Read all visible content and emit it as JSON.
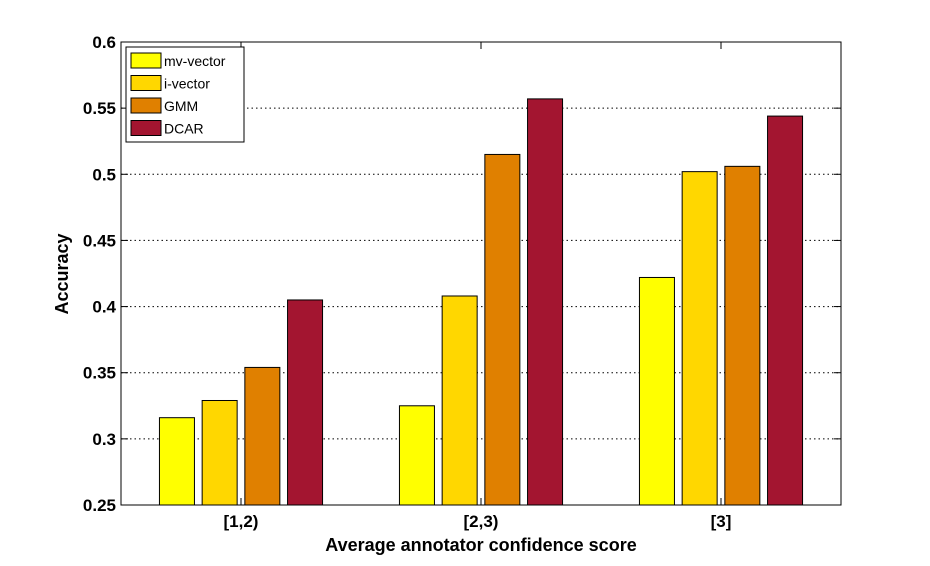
{
  "chart_data": {
    "type": "bar",
    "title": "",
    "xlabel": "Average annotator confidence score",
    "ylabel": "Accuracy",
    "categories": [
      "[1,2)",
      "[2,3)",
      "[3]"
    ],
    "ylim": [
      0.25,
      0.6
    ],
    "yticks": [
      0.25,
      0.3,
      0.35,
      0.4,
      0.45,
      0.5,
      0.55,
      0.6
    ],
    "ytick_labels": [
      "0.25",
      "0.3",
      "0.35",
      "0.4",
      "0.45",
      "0.5",
      "0.55",
      "0.6"
    ],
    "grid": "y-dotted",
    "legend_position": "top-left",
    "series": [
      {
        "name": "mv-vector",
        "color": "#ffff00",
        "values": [
          0.316,
          0.325,
          0.422
        ]
      },
      {
        "name": "i-vector",
        "color": "#ffd700",
        "values": [
          0.329,
          0.408,
          0.502
        ]
      },
      {
        "name": "GMM",
        "color": "#e08000",
        "values": [
          0.354,
          0.515,
          0.506
        ]
      },
      {
        "name": "DCAR",
        "color": "#a31530",
        "values": [
          0.405,
          0.557,
          0.544
        ]
      }
    ]
  }
}
